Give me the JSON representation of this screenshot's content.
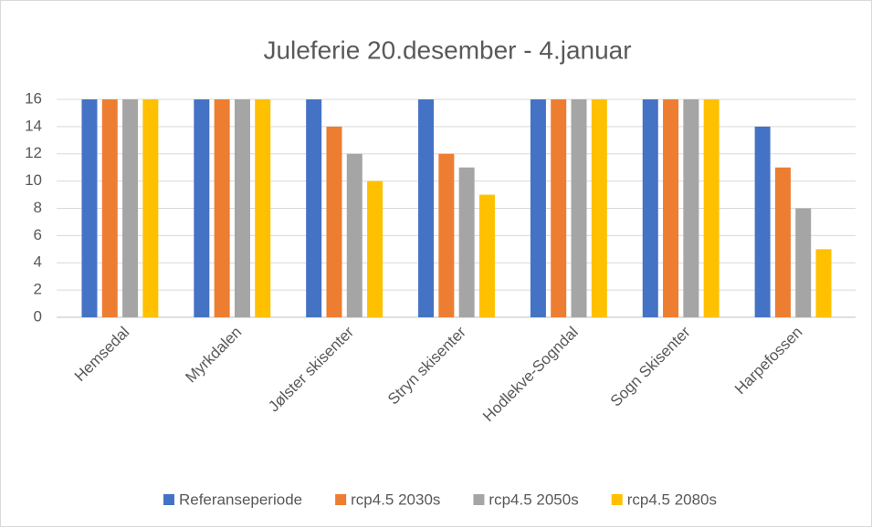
{
  "chart_data": {
    "type": "bar",
    "title": "Juleferie 20.desember - 4.januar",
    "categories": [
      "Hemsedal",
      "Myrkdalen",
      "Jølster skisenter",
      "Stryn skisenter",
      "Hodlekve-Sogndal",
      "Sogn Skisenter",
      "Harpefossen"
    ],
    "series": [
      {
        "name": "Referanseperiode",
        "color": "#4472c4",
        "values": [
          16,
          16,
          16,
          16,
          16,
          16,
          14
        ]
      },
      {
        "name": "rcp4.5 2030s",
        "color": "#ed7d31",
        "values": [
          16,
          16,
          14,
          12,
          16,
          16,
          11
        ]
      },
      {
        "name": "rcp4.5 2050s",
        "color": "#a5a5a5",
        "values": [
          16,
          16,
          12,
          11,
          16,
          16,
          8
        ]
      },
      {
        "name": "rcp4.5 2080s",
        "color": "#ffc000",
        "values": [
          16,
          16,
          10,
          9,
          16,
          16,
          5
        ]
      }
    ],
    "ylim": [
      0,
      16
    ],
    "yticks": [
      0,
      2,
      4,
      6,
      8,
      10,
      12,
      14,
      16
    ],
    "grid": true,
    "legend": "bottom"
  }
}
